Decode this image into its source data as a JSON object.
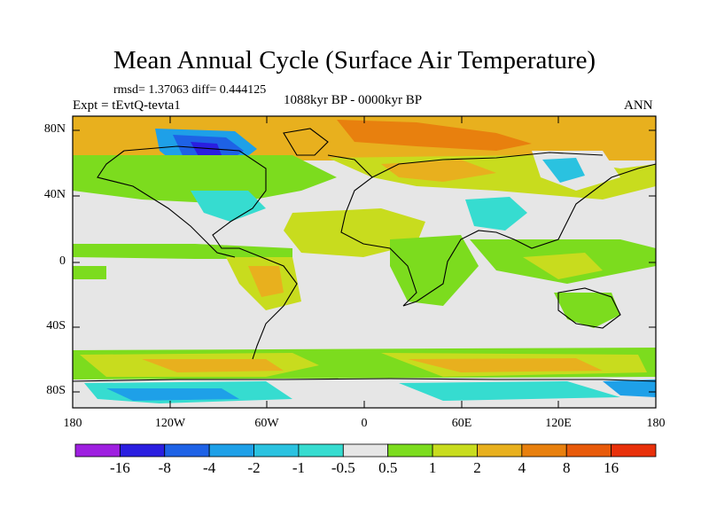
{
  "header": {
    "title": "Mean Annual Cycle (Surface Air Temperature)",
    "stats": "rmsd= 1.37063 diff= 0.444125",
    "experiment": "Expt = tEvtQ-tevta1",
    "period": "1088kyr BP - 0000kyr BP",
    "season": "ANN"
  },
  "map": {
    "projection": "cylindrical equidistant",
    "lon_range": [
      -180,
      180
    ],
    "lat_range": [
      -90,
      90
    ],
    "y_tick_labels": [
      "80N",
      "40N",
      "0",
      "40S",
      "80S"
    ],
    "x_tick_labels": [
      "180",
      "120W",
      "60W",
      "0",
      "60E",
      "120E",
      "180"
    ],
    "regions": [
      {
        "name": "arctic-canada-cooling",
        "level": -8
      },
      {
        "name": "arctic-ocean-warming",
        "level": 8
      },
      {
        "name": "siberia-warming",
        "level": 4
      },
      {
        "name": "central-asia-cooling",
        "level": -2
      },
      {
        "name": "tropical-band-warming",
        "level": 1
      },
      {
        "name": "southern-ocean-warming",
        "level": 4
      },
      {
        "name": "antarctica-cooling",
        "level": -4
      }
    ]
  },
  "colorbar": {
    "labels": [
      "-16",
      "-8",
      "-4",
      "-2",
      "-1",
      "-0.5",
      "0.5",
      "1",
      "2",
      "4",
      "8",
      "16"
    ],
    "colors": [
      "#9e1fe0",
      "#2a1ee0",
      "#1e62e6",
      "#1ea0e8",
      "#2ac2e0",
      "#36dcd0",
      "#e6e6e6",
      "#7cdc1e",
      "#c8dc1e",
      "#e8b01e",
      "#e8800e",
      "#e85a0a",
      "#e8300a"
    ]
  }
}
